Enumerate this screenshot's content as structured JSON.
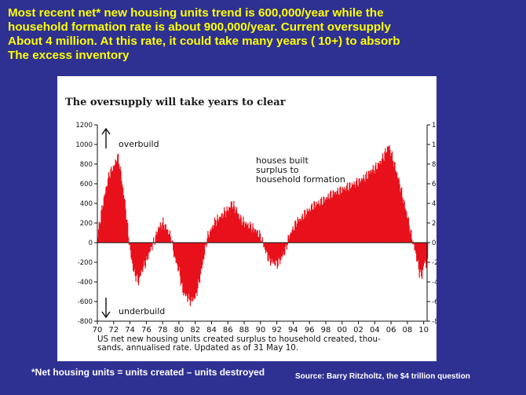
{
  "headline": {
    "lines": [
      "Most recent net* new housing units trend is 600,000/year while the",
      "household formation rate is about 900,000/year. Current oversupply",
      "About 4 million.  At this rate, it could take many years ( 10+) to absorb",
      "The excess inventory"
    ]
  },
  "footnote": "*Net housing units  = units created – units destroyed",
  "source": "Source: Barry Ritzholtz, the $4 trillion question",
  "colors": {
    "background": "#2e3192",
    "headline": "#ffff00",
    "bars": "#e8101a"
  },
  "chart_data": {
    "type": "bar",
    "title": "The oversupply will take years to clear",
    "caption_lines": [
      "US net new housing units created surplus to household created, thou-",
      "sands, annualised rate. Updated as of 31 May 10."
    ],
    "annotations": {
      "overbuild": "overbuild",
      "underbuild": "underbuild",
      "houses_built": [
        "houses built",
        "surplus to",
        "household formation"
      ]
    },
    "ylim": [
      -800,
      1200
    ],
    "y_ticks": [
      1200,
      1000,
      800,
      600,
      400,
      200,
      0,
      -200,
      -400,
      -600,
      -800
    ],
    "x_tick_labels": [
      "70",
      "72",
      "74",
      "76",
      "78",
      "80",
      "82",
      "84",
      "86",
      "88",
      "90",
      "92",
      "94",
      "96",
      "98",
      "00",
      "02",
      "04",
      "06",
      "08",
      "10"
    ],
    "x_range": [
      "1970-01",
      "2010-06"
    ],
    "series": [
      {
        "values": [
          {
            "x": "1970-01",
            "y": 80
          },
          {
            "x": "1970-06",
            "y": 300
          },
          {
            "x": "1971-01",
            "y": 550
          },
          {
            "x": "1971-06",
            "y": 700
          },
          {
            "x": "1972-01",
            "y": 780
          },
          {
            "x": "1972-06",
            "y": 880
          },
          {
            "x": "1972-09",
            "y": 800
          },
          {
            "x": "1973-01",
            "y": 600
          },
          {
            "x": "1973-06",
            "y": 350
          },
          {
            "x": "1973-10",
            "y": 80
          },
          {
            "x": "1974-01",
            "y": -100
          },
          {
            "x": "1974-06",
            "y": -300
          },
          {
            "x": "1975-01",
            "y": -400
          },
          {
            "x": "1975-06",
            "y": -280
          },
          {
            "x": "1976-01",
            "y": -180
          },
          {
            "x": "1976-06",
            "y": -80
          },
          {
            "x": "1977-01",
            "y": 30
          },
          {
            "x": "1977-06",
            "y": 150
          },
          {
            "x": "1978-01",
            "y": 200
          },
          {
            "x": "1978-06",
            "y": 150
          },
          {
            "x": "1979-01",
            "y": 50
          },
          {
            "x": "1979-06",
            "y": -150
          },
          {
            "x": "1980-01",
            "y": -300
          },
          {
            "x": "1980-06",
            "y": -500
          },
          {
            "x": "1981-01",
            "y": -560
          },
          {
            "x": "1981-06",
            "y": -600
          },
          {
            "x": "1982-01",
            "y": -550
          },
          {
            "x": "1982-06",
            "y": -400
          },
          {
            "x": "1983-01",
            "y": -150
          },
          {
            "x": "1983-06",
            "y": 50
          },
          {
            "x": "1984-01",
            "y": 150
          },
          {
            "x": "1984-06",
            "y": 220
          },
          {
            "x": "1985-01",
            "y": 260
          },
          {
            "x": "1985-06",
            "y": 300
          },
          {
            "x": "1986-01",
            "y": 340
          },
          {
            "x": "1986-06",
            "y": 400
          },
          {
            "x": "1987-01",
            "y": 330
          },
          {
            "x": "1987-06",
            "y": 250
          },
          {
            "x": "1988-01",
            "y": 200
          },
          {
            "x": "1988-06",
            "y": 180
          },
          {
            "x": "1989-01",
            "y": 150
          },
          {
            "x": "1989-06",
            "y": 120
          },
          {
            "x": "1990-01",
            "y": 60
          },
          {
            "x": "1990-06",
            "y": -50
          },
          {
            "x": "1991-01",
            "y": -180
          },
          {
            "x": "1991-06",
            "y": -200
          },
          {
            "x": "1992-01",
            "y": -220
          },
          {
            "x": "1992-06",
            "y": -170
          },
          {
            "x": "1993-01",
            "y": -80
          },
          {
            "x": "1993-06",
            "y": 60
          },
          {
            "x": "1994-01",
            "y": 150
          },
          {
            "x": "1994-06",
            "y": 220
          },
          {
            "x": "1995-01",
            "y": 250
          },
          {
            "x": "1995-06",
            "y": 300
          },
          {
            "x": "1996-01",
            "y": 340
          },
          {
            "x": "1996-06",
            "y": 380
          },
          {
            "x": "1997-01",
            "y": 400
          },
          {
            "x": "1997-06",
            "y": 420
          },
          {
            "x": "1998-01",
            "y": 450
          },
          {
            "x": "1998-06",
            "y": 480
          },
          {
            "x": "1999-01",
            "y": 510
          },
          {
            "x": "1999-06",
            "y": 520
          },
          {
            "x": "2000-01",
            "y": 540
          },
          {
            "x": "2000-06",
            "y": 560
          },
          {
            "x": "2001-01",
            "y": 580
          },
          {
            "x": "2001-06",
            "y": 600
          },
          {
            "x": "2002-01",
            "y": 620
          },
          {
            "x": "2002-06",
            "y": 650
          },
          {
            "x": "2003-01",
            "y": 680
          },
          {
            "x": "2003-06",
            "y": 730
          },
          {
            "x": "2004-01",
            "y": 760
          },
          {
            "x": "2004-06",
            "y": 800
          },
          {
            "x": "2005-01",
            "y": 870
          },
          {
            "x": "2005-06",
            "y": 950
          },
          {
            "x": "2005-09",
            "y": 990
          },
          {
            "x": "2006-01",
            "y": 900
          },
          {
            "x": "2006-06",
            "y": 780
          },
          {
            "x": "2007-01",
            "y": 600
          },
          {
            "x": "2007-06",
            "y": 450
          },
          {
            "x": "2008-01",
            "y": 250
          },
          {
            "x": "2008-06",
            "y": 80
          },
          {
            "x": "2009-01",
            "y": -120
          },
          {
            "x": "2009-06",
            "y": -300
          },
          {
            "x": "2009-10",
            "y": -340
          },
          {
            "x": "2010-01",
            "y": -200
          },
          {
            "x": "2010-05",
            "y": -220
          }
        ]
      }
    ]
  }
}
